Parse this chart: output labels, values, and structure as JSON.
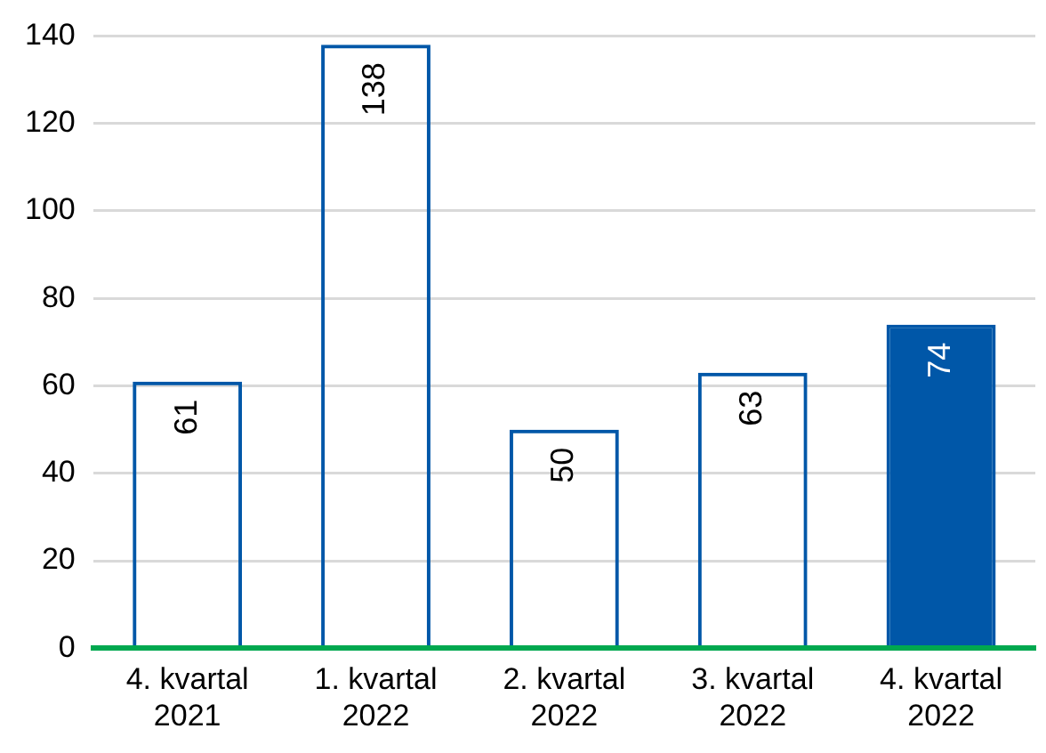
{
  "chart_data": {
    "type": "bar",
    "categories": [
      "4. kvartal 2021",
      "1. kvartal 2022",
      "2. kvartal 2022",
      "3. kvartal 2022",
      "4. kvartal 2022"
    ],
    "series": [
      {
        "values": [
          61,
          138,
          50,
          63,
          74
        ],
        "color": "#0057a8",
        "colors": [
          null,
          null,
          null,
          null,
          "#0057a8"
        ]
      }
    ],
    "ylim": [
      0,
      140
    ],
    "yticks": [
      0,
      20,
      40,
      60,
      80,
      100,
      120,
      140
    ],
    "grid": "y",
    "legend": false,
    "data_labels": true
  }
}
